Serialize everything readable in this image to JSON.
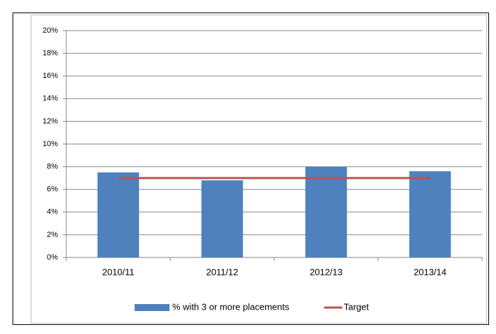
{
  "chart_data": {
    "type": "bar",
    "categories": [
      "2010/11",
      "2011/12",
      "2012/13",
      "2013/14"
    ],
    "series": [
      {
        "name": "% with 3 or more placements",
        "type": "bar",
        "color": "#4f81bd",
        "values": [
          7.5,
          6.8,
          8.0,
          7.6
        ]
      },
      {
        "name": "Target",
        "type": "line",
        "color": "#c0504d",
        "values": [
          7,
          7,
          7,
          7
        ]
      }
    ],
    "ylim": [
      0,
      20
    ],
    "yticks": [
      {
        "value": 0,
        "label": "0%"
      },
      {
        "value": 2,
        "label": "2%"
      },
      {
        "value": 4,
        "label": "4%"
      },
      {
        "value": 6,
        "label": "6%"
      },
      {
        "value": 8,
        "label": "8%"
      },
      {
        "value": 10,
        "label": "10%"
      },
      {
        "value": 12,
        "label": "12%"
      },
      {
        "value": 14,
        "label": "14%"
      },
      {
        "value": 16,
        "label": "16%"
      },
      {
        "value": 18,
        "label": "18%"
      },
      {
        "value": 20,
        "label": "20%"
      }
    ],
    "grid": true,
    "legend": "bottom"
  }
}
